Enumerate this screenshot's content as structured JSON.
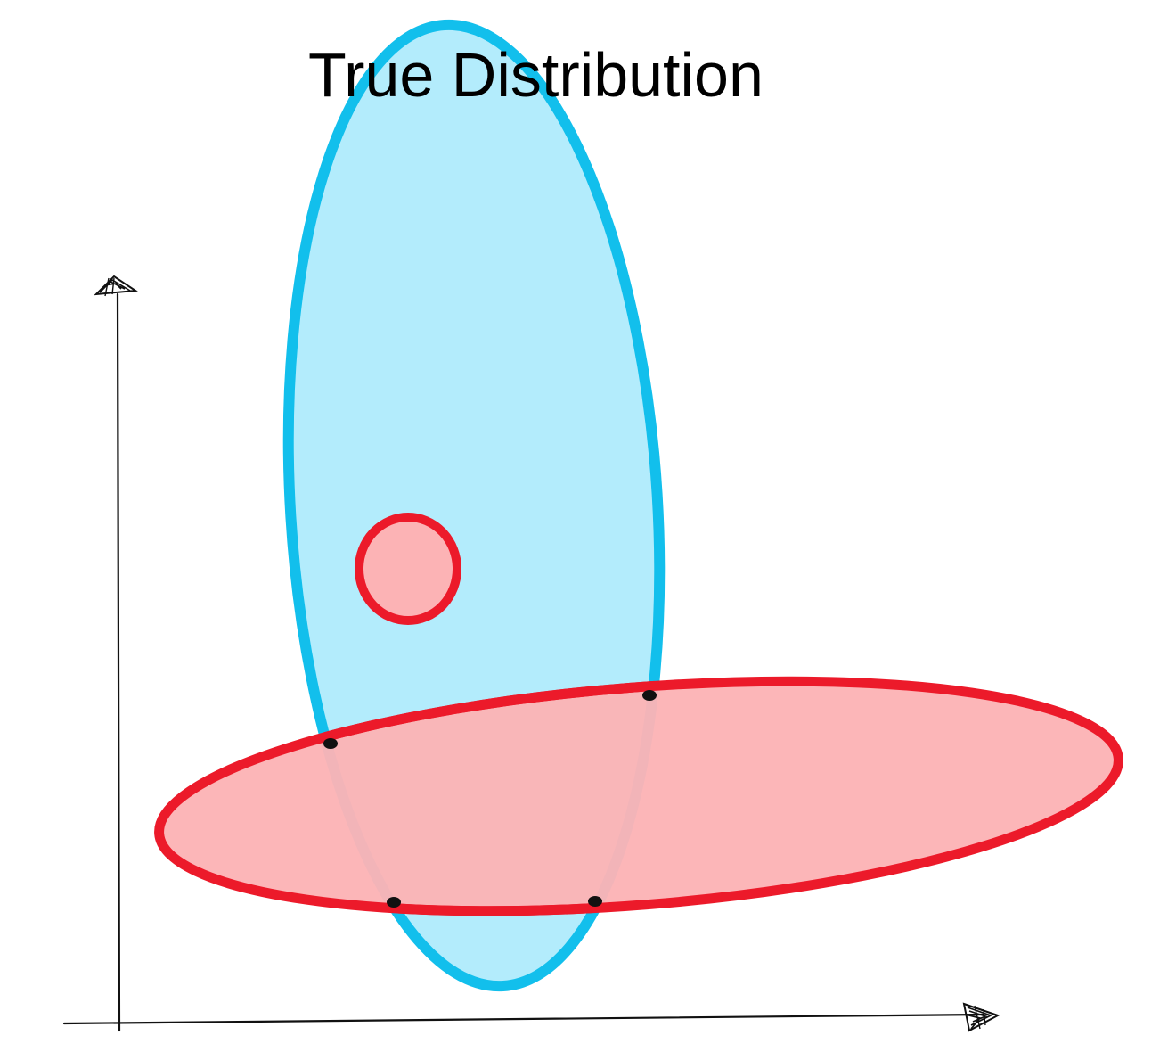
{
  "title": "True Distribution",
  "colors": {
    "true_fill": "#b3ecfc",
    "true_stroke": "#12bfec",
    "model_fill": "#fcb3b5",
    "model_stroke": "#ec1a2a",
    "axis": "#111111",
    "overlap_stroke": "#111111"
  },
  "shapes": [
    {
      "id": "true-distribution-ellipse",
      "kind": "ellipse",
      "role": "true distribution"
    },
    {
      "id": "large-red-ellipse",
      "kind": "ellipse",
      "role": "model distribution"
    },
    {
      "id": "small-red-circle",
      "kind": "circle",
      "role": "model distribution"
    }
  ],
  "axes": {
    "x_arrow_icon": "hand-drawn-arrowhead-icon",
    "y_arrow_icon": "hand-drawn-arrowhead-icon"
  }
}
